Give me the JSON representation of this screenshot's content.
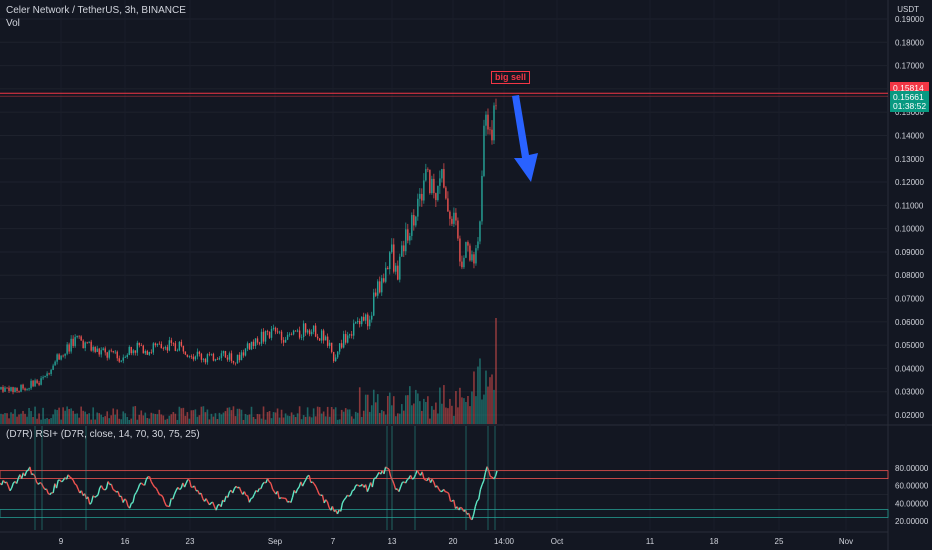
{
  "header": {
    "symbol_title": "Celer Network / TetherUS, 3h, BINANCE",
    "volume_label": "Vol",
    "rsi_label": "(D7R) RSI+ (D7R, close, 14, 70, 30, 75, 25)",
    "currency": "USDT"
  },
  "price_tags": {
    "sell_level": "0.15814",
    "last_price": "0.15661",
    "countdown": "01:38:52"
  },
  "annotation": {
    "text": "big sell"
  },
  "colors": {
    "background": "#131722",
    "up": "#26a69a",
    "down": "#ef5350",
    "sell_line": "#f23645",
    "arrow": "#2962ff",
    "text": "#d1d4dc"
  },
  "chart_data": [
    {
      "type": "candlestick",
      "panel": "price",
      "y_scale": "linear",
      "y_ticks": [
        "0.02000",
        "0.03000",
        "0.04000",
        "0.05000",
        "0.06000",
        "0.07000",
        "0.08000",
        "0.09000",
        "0.10000",
        "0.11000",
        "0.12000",
        "0.13000",
        "0.14000",
        "0.15000",
        "0.16000",
        "0.17000",
        "0.18000",
        "0.19000"
      ],
      "ylim": [
        0.015,
        0.192
      ],
      "x_ticks": [
        "9",
        "16",
        "23",
        "Sep",
        "7",
        "13",
        "20",
        "14:00",
        "Oct",
        "11",
        "18",
        "25",
        "Nov"
      ],
      "price_path": [
        [
          0.0,
          0.031
        ],
        [
          0.03,
          0.031
        ],
        [
          0.06,
          0.033
        ],
        [
          0.09,
          0.036
        ],
        [
          0.11,
          0.044
        ],
        [
          0.13,
          0.048
        ],
        [
          0.15,
          0.052
        ],
        [
          0.18,
          0.049
        ],
        [
          0.21,
          0.046
        ],
        [
          0.24,
          0.045
        ],
        [
          0.27,
          0.049
        ],
        [
          0.3,
          0.048
        ],
        [
          0.33,
          0.05
        ],
        [
          0.36,
          0.049
        ],
        [
          0.39,
          0.046
        ],
        [
          0.42,
          0.044
        ],
        [
          0.45,
          0.046
        ],
        [
          0.48,
          0.044
        ],
        [
          0.5,
          0.049
        ],
        [
          0.52,
          0.053
        ],
        [
          0.55,
          0.055
        ],
        [
          0.58,
          0.053
        ],
        [
          0.6,
          0.055
        ],
        [
          0.62,
          0.058
        ],
        [
          0.64,
          0.055
        ],
        [
          0.66,
          0.052
        ],
        [
          0.67,
          0.044
        ],
        [
          0.68,
          0.048
        ],
        [
          0.7,
          0.055
        ],
        [
          0.72,
          0.058
        ],
        [
          0.73,
          0.064
        ],
        [
          0.745,
          0.06
        ],
        [
          0.755,
          0.072
        ],
        [
          0.765,
          0.075
        ],
        [
          0.775,
          0.08
        ],
        [
          0.79,
          0.09
        ],
        [
          0.8,
          0.078
        ],
        [
          0.815,
          0.095
        ],
        [
          0.83,
          0.104
        ],
        [
          0.845,
          0.11
        ],
        [
          0.86,
          0.124
        ],
        [
          0.875,
          0.112
        ],
        [
          0.885,
          0.126
        ],
        [
          0.9,
          0.11
        ],
        [
          0.915,
          0.105
        ],
        [
          0.93,
          0.083
        ],
        [
          0.94,
          0.1
        ],
        [
          0.95,
          0.085
        ],
        [
          0.96,
          0.09
        ],
        [
          0.97,
          0.11
        ],
        [
          0.975,
          0.14
        ],
        [
          0.985,
          0.15
        ],
        [
          0.99,
          0.13
        ],
        [
          1.0,
          0.158
        ]
      ],
      "sell_level": 0.15814,
      "last_price": 0.15661
    },
    {
      "type": "bar",
      "panel": "volume",
      "series": [
        {
          "name": "Vol"
        }
      ]
    },
    {
      "type": "line",
      "panel": "rsi",
      "y_ticks": [
        "20.00000",
        "40.00000",
        "60.00000",
        "80.00000"
      ],
      "ylim": [
        12,
        88
      ],
      "bands": [
        75,
        70,
        30,
        25
      ],
      "rsi_path": [
        [
          0.0,
          65
        ],
        [
          0.02,
          58
        ],
        [
          0.04,
          70
        ],
        [
          0.06,
          78
        ],
        [
          0.08,
          62
        ],
        [
          0.1,
          50
        ],
        [
          0.12,
          66
        ],
        [
          0.14,
          72
        ],
        [
          0.16,
          56
        ],
        [
          0.18,
          42
        ],
        [
          0.2,
          55
        ],
        [
          0.22,
          62
        ],
        [
          0.24,
          48
        ],
        [
          0.26,
          36
        ],
        [
          0.28,
          58
        ],
        [
          0.3,
          68
        ],
        [
          0.32,
          50
        ],
        [
          0.34,
          38
        ],
        [
          0.36,
          58
        ],
        [
          0.38,
          65
        ],
        [
          0.4,
          52
        ],
        [
          0.42,
          40
        ],
        [
          0.44,
          34
        ],
        [
          0.46,
          52
        ],
        [
          0.48,
          60
        ],
        [
          0.5,
          44
        ],
        [
          0.52,
          55
        ],
        [
          0.54,
          66
        ],
        [
          0.56,
          50
        ],
        [
          0.58,
          40
        ],
        [
          0.6,
          58
        ],
        [
          0.62,
          70
        ],
        [
          0.64,
          52
        ],
        [
          0.66,
          38
        ],
        [
          0.68,
          28
        ],
        [
          0.7,
          48
        ],
        [
          0.72,
          64
        ],
        [
          0.74,
          56
        ],
        [
          0.76,
          70
        ],
        [
          0.78,
          80
        ],
        [
          0.8,
          54
        ],
        [
          0.82,
          66
        ],
        [
          0.84,
          76
        ],
        [
          0.86,
          68
        ],
        [
          0.88,
          60
        ],
        [
          0.9,
          50
        ],
        [
          0.92,
          35
        ],
        [
          0.94,
          30
        ],
        [
          0.95,
          22
        ],
        [
          0.96,
          40
        ],
        [
          0.97,
          58
        ],
        [
          0.98,
          78
        ],
        [
          0.99,
          70
        ],
        [
          1.0,
          74
        ]
      ]
    }
  ]
}
